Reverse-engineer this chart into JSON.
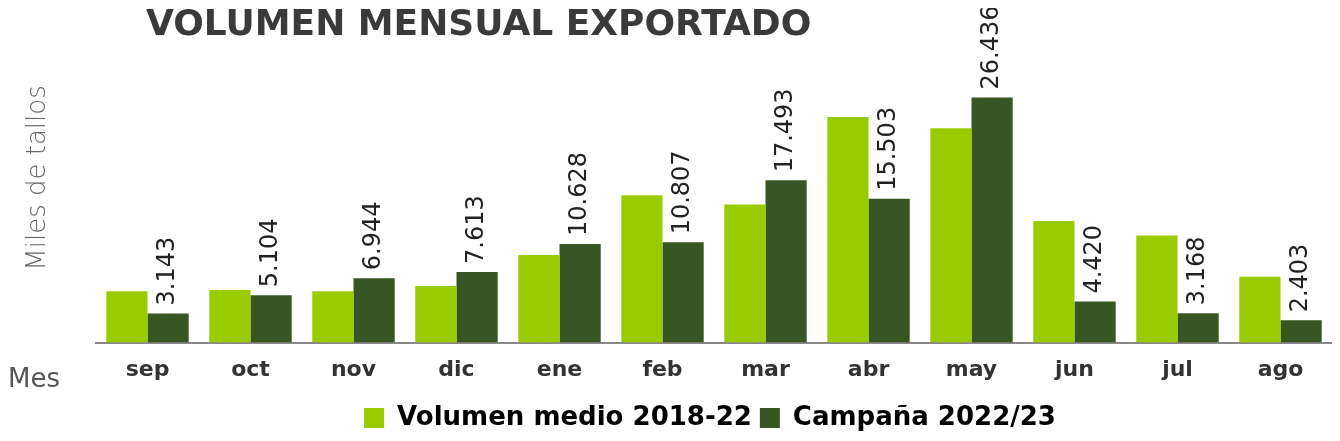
{
  "chart_data": {
    "type": "bar",
    "title": "VOLUMEN MENSUAL EXPORTADO",
    "ylabel": "Miles de tallos",
    "xlabel": "Mes",
    "categories": [
      "sep",
      "oct",
      "nov",
      "dic",
      "ene",
      "feb",
      "mar",
      "abr",
      "may",
      "jun",
      "jul",
      "ago"
    ],
    "series": [
      {
        "name": "Volumen medio 2018-22",
        "color": "#99cc00",
        "values": [
          5550,
          5660,
          5550,
          6100,
          9440,
          15880,
          14880,
          24320,
          23100,
          13100,
          11550,
          7100
        ]
      },
      {
        "name": "Campaña 2022/23",
        "color": "#375623",
        "values": [
          3143,
          5104,
          6944,
          7613,
          10628,
          10807,
          17493,
          15503,
          26436,
          4420,
          3168,
          2403
        ],
        "value_labels": [
          "3.143",
          "5.104",
          "6.944",
          "7.613",
          "10.628",
          "10.807",
          "17.493",
          "15.503",
          "26.436",
          "4.420",
          "3.168",
          "2.403"
        ]
      }
    ],
    "legend": "bottom",
    "grid": false
  }
}
